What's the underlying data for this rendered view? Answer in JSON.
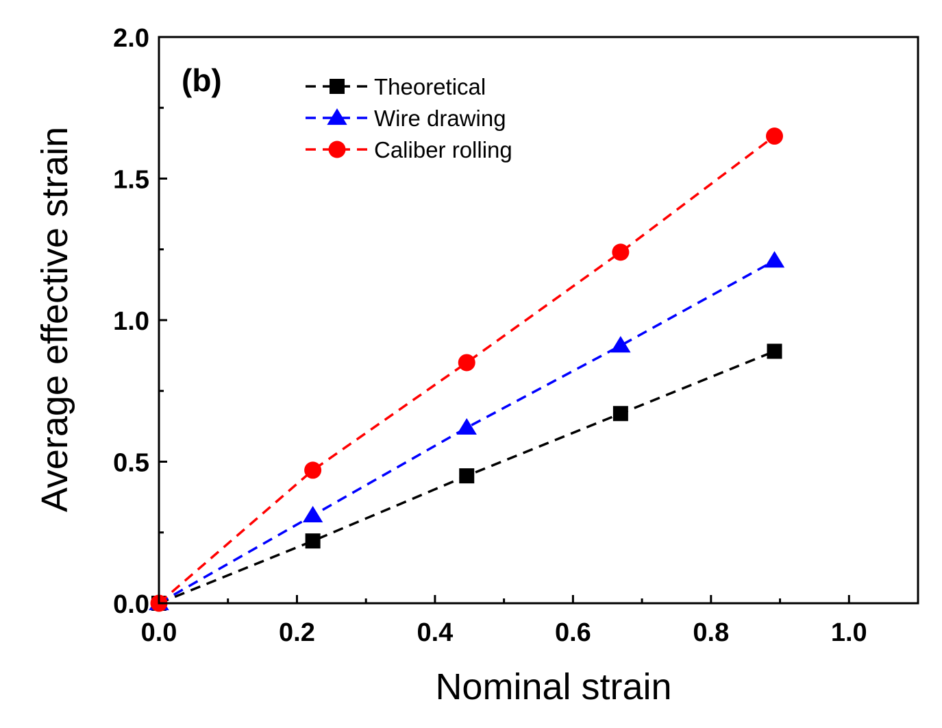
{
  "chart_data": {
    "type": "scatter",
    "title": "",
    "panel_label": "(b)",
    "xlabel": "Nominal strain",
    "ylabel": "Average effective strain",
    "xlim": [
      0.0,
      1.1
    ],
    "ylim": [
      0.0,
      2.0
    ],
    "xticks": [
      0.0,
      0.2,
      0.4,
      0.6,
      0.8,
      1.0
    ],
    "xtick_labels": [
      "0.0",
      "0.2",
      "0.4",
      "0.6",
      "0.8",
      "1.0"
    ],
    "yticks": [
      0.0,
      0.5,
      1.0,
      1.5,
      2.0
    ],
    "ytick_labels": [
      "0.0",
      "0.5",
      "1.0",
      "1.5",
      "2.0"
    ],
    "grid": false,
    "legend_position": "top-left",
    "series": [
      {
        "name": "Theoretical",
        "marker": "square",
        "color": "#000000",
        "x": [
          0.0,
          0.223,
          0.446,
          0.669,
          0.892
        ],
        "y": [
          0.0,
          0.22,
          0.45,
          0.67,
          0.89
        ]
      },
      {
        "name": "Wire drawing",
        "marker": "triangle",
        "color": "#0000ff",
        "x": [
          0.0,
          0.223,
          0.446,
          0.669,
          0.892
        ],
        "y": [
          0.0,
          0.31,
          0.62,
          0.91,
          1.21
        ]
      },
      {
        "name": "Caliber rolling",
        "marker": "circle",
        "color": "#ff0000",
        "x": [
          0.0,
          0.223,
          0.446,
          0.669,
          0.892
        ],
        "y": [
          0.0,
          0.47,
          0.85,
          1.24,
          1.65
        ]
      }
    ]
  }
}
